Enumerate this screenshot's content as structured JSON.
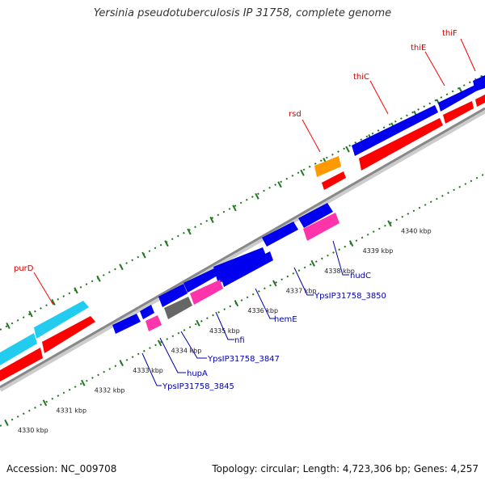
{
  "title": "Yersinia pseudotuberculosis IP 31758, complete genome",
  "footer": {
    "accession": "Accession: NC_009708",
    "info": "Topology: circular; Length: 4,723,306 bp; Genes: 4,257"
  },
  "colors": {
    "cds_blue": "#0000ee",
    "cds_red": "#ff0000",
    "cds_cyan": "#22ccee",
    "cds_orange": "#ff9900",
    "cds_pink": "#ff33aa",
    "cds_gray": "#666666",
    "tick_green": "#227722",
    "backbone": "#999999",
    "label_red": "#cc0000",
    "label_blue": "#0000aa"
  },
  "tick_labels": [
    "4330 kbp",
    "4331 kbp",
    "4332 kbp",
    "4333 kbp",
    "4334 kbp",
    "4335 kbp",
    "4336 kbp",
    "4337 kbp",
    "4338 kbp",
    "4339 kbp",
    "4340 kbp"
  ],
  "gene_labels": [
    {
      "name": "thiF",
      "color": "red"
    },
    {
      "name": "thiE",
      "color": "red"
    },
    {
      "name": "thiC",
      "color": "red"
    },
    {
      "name": "rsd",
      "color": "red"
    },
    {
      "name": "purD",
      "color": "red"
    },
    {
      "name": "nudC",
      "color": "blue"
    },
    {
      "name": "YpsIP31758_3850",
      "color": "blue"
    },
    {
      "name": "hemE",
      "color": "blue"
    },
    {
      "name": "nfi",
      "color": "blue"
    },
    {
      "name": "YpsIP31758_3847",
      "color": "blue"
    },
    {
      "name": "hupA",
      "color": "blue"
    },
    {
      "name": "YpsIP31758_3845",
      "color": "blue"
    }
  ]
}
